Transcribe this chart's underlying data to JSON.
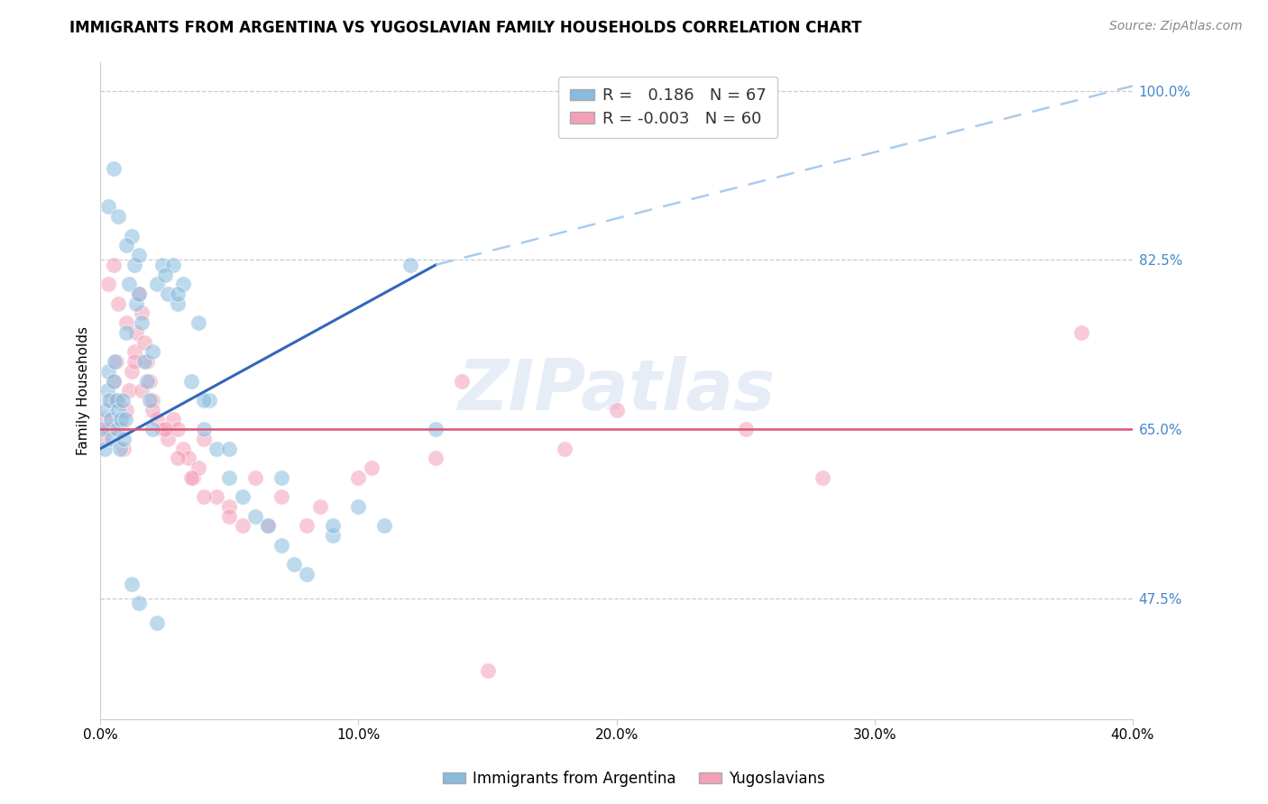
{
  "title": "IMMIGRANTS FROM ARGENTINA VS YUGOSLAVIAN FAMILY HOUSEHOLDS CORRELATION CHART",
  "source": "Source: ZipAtlas.com",
  "ylabel": "Family Households",
  "right_yticks": [
    47.5,
    65.0,
    82.5,
    100.0
  ],
  "right_ytick_labels": [
    "47.5%",
    "65.0%",
    "82.5%",
    "100.0%"
  ],
  "watermark": "ZIPatlas",
  "blue_color": "#88bbdd",
  "pink_color": "#f4a0b8",
  "blue_line_color": "#3366bb",
  "pink_line_color": "#dd5577",
  "dashed_line_color": "#aaccee",
  "argentina_x": [
    0.1,
    0.15,
    0.2,
    0.25,
    0.3,
    0.35,
    0.4,
    0.45,
    0.5,
    0.55,
    0.6,
    0.65,
    0.7,
    0.75,
    0.8,
    0.85,
    0.9,
    0.95,
    1.0,
    1.1,
    1.2,
    1.3,
    1.4,
    1.5,
    1.6,
    1.7,
    1.8,
    1.9,
    2.0,
    2.2,
    2.4,
    2.6,
    2.8,
    3.0,
    3.2,
    3.5,
    3.8,
    4.0,
    4.2,
    4.5,
    5.0,
    5.5,
    6.0,
    6.5,
    7.0,
    7.5,
    8.0,
    9.0,
    10.0,
    11.0,
    12.0,
    13.0,
    0.3,
    0.5,
    0.7,
    1.0,
    1.5,
    2.5,
    3.0,
    4.0,
    5.0,
    7.0,
    9.0,
    2.0,
    1.2,
    1.5,
    2.2
  ],
  "argentina_y": [
    65.0,
    63.0,
    67.0,
    69.0,
    71.0,
    68.0,
    66.0,
    64.0,
    70.0,
    72.0,
    68.0,
    65.0,
    67.0,
    63.0,
    66.0,
    68.0,
    64.0,
    66.0,
    75.0,
    80.0,
    85.0,
    82.0,
    78.0,
    79.0,
    76.0,
    72.0,
    70.0,
    68.0,
    73.0,
    80.0,
    82.0,
    79.0,
    82.0,
    78.0,
    80.0,
    70.0,
    76.0,
    65.0,
    68.0,
    63.0,
    60.0,
    58.0,
    56.0,
    55.0,
    53.0,
    51.0,
    50.0,
    54.0,
    57.0,
    55.0,
    82.0,
    65.0,
    88.0,
    92.0,
    87.0,
    84.0,
    83.0,
    81.0,
    79.0,
    68.0,
    63.0,
    60.0,
    55.0,
    65.0,
    49.0,
    47.0,
    45.0
  ],
  "yugo_x": [
    0.1,
    0.2,
    0.3,
    0.4,
    0.5,
    0.6,
    0.7,
    0.8,
    0.9,
    1.0,
    1.1,
    1.2,
    1.3,
    1.4,
    1.5,
    1.6,
    1.7,
    1.8,
    1.9,
    2.0,
    2.2,
    2.4,
    2.6,
    2.8,
    3.0,
    3.2,
    3.4,
    3.6,
    3.8,
    4.0,
    4.5,
    5.0,
    5.5,
    6.0,
    7.0,
    8.0,
    10.0,
    13.0,
    15.0,
    18.0,
    25.0,
    0.3,
    0.5,
    0.7,
    1.0,
    1.3,
    1.6,
    2.0,
    2.5,
    3.0,
    3.5,
    4.0,
    5.0,
    6.5,
    8.5,
    10.5,
    14.0,
    20.0,
    28.0,
    38.0
  ],
  "yugo_y": [
    64.0,
    66.0,
    65.0,
    68.0,
    70.0,
    72.0,
    68.0,
    65.0,
    63.0,
    67.0,
    69.0,
    71.0,
    73.0,
    75.0,
    79.0,
    77.0,
    74.0,
    72.0,
    70.0,
    68.0,
    66.0,
    65.0,
    64.0,
    66.0,
    65.0,
    63.0,
    62.0,
    60.0,
    61.0,
    64.0,
    58.0,
    57.0,
    55.0,
    60.0,
    58.0,
    55.0,
    60.0,
    62.0,
    40.0,
    63.0,
    65.0,
    80.0,
    82.0,
    78.0,
    76.0,
    72.0,
    69.0,
    67.0,
    65.0,
    62.0,
    60.0,
    58.0,
    56.0,
    55.0,
    57.0,
    61.0,
    70.0,
    67.0,
    60.0,
    75.0
  ],
  "xmin": 0.0,
  "xmax": 40.0,
  "ymin": 35.0,
  "ymax": 103.0,
  "blue_trend_x0": 0.0,
  "blue_trend_y0": 63.0,
  "blue_trend_x1": 13.0,
  "blue_trend_y1": 82.0,
  "blue_dash_x0": 13.0,
  "blue_dash_y0": 82.0,
  "blue_dash_x1": 40.0,
  "blue_dash_y1": 100.5,
  "pink_trend_y": 65.0,
  "title_fontsize": 12,
  "source_fontsize": 10,
  "axis_label_fontsize": 11,
  "tick_fontsize": 11,
  "legend_fontsize": 13,
  "xtick_positions": [
    0,
    10,
    20,
    30,
    40
  ],
  "xtick_labels": [
    "0.0%",
    "10.0%",
    "20.0%",
    "30.0%",
    "40.0%"
  ]
}
